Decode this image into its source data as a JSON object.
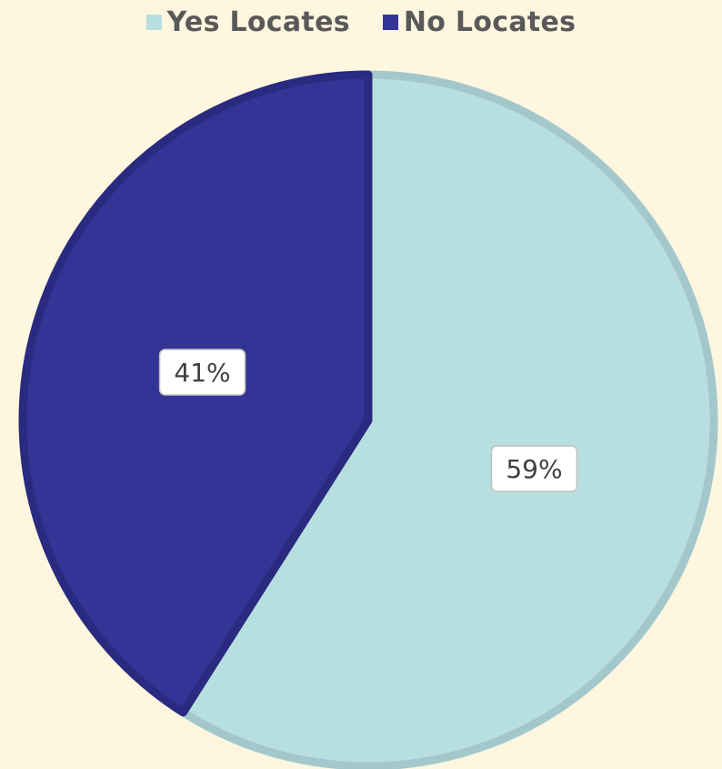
{
  "chart_data": {
    "type": "pie",
    "categories": [
      "Yes Locates",
      "No Locates"
    ],
    "values": [
      59,
      41
    ],
    "labels": [
      "59%",
      "41%"
    ],
    "colors": [
      "#b8dfe0",
      "#343496"
    ],
    "edge_colors": [
      "#a3c8cc",
      "#2a2a80"
    ],
    "start_angle_deg": 0,
    "direction": "clockwise",
    "legend_position": "top"
  },
  "legend": {
    "items": [
      {
        "label": "Yes Locates",
        "color": "#b8dfe0"
      },
      {
        "label": "No Locates",
        "color": "#343496"
      }
    ]
  }
}
